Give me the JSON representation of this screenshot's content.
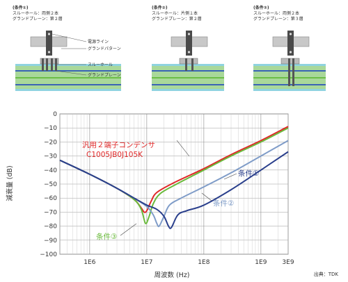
{
  "conditions": [
    {
      "header": "(条件①)",
      "line1": "スルーホール：両側２本",
      "line2": "グランドプレーン：第２層"
    },
    {
      "header": "(条件②)",
      "line1": "スルーホール：片側１本",
      "line2": "グランドプレーン：第２層"
    },
    {
      "header": "(条件③)",
      "line1": "スルーホール：両側２本",
      "line2": "グランドプレーン：第３層"
    }
  ],
  "diagram_labels": {
    "power_line": "電源ライン",
    "ground_pattern": "グランドパターン",
    "through_hole": "スルーホール",
    "ground_plane": "グランドプレーン"
  },
  "colors": {
    "cond1": "#2a3f8c",
    "cond2": "#7f9cc8",
    "cond3": "#6aba3c",
    "general": "#e02828",
    "pcb_green": "#a9d89a",
    "pcb_cyan": "#8fd3e0",
    "plane_blue": "#3a64b6",
    "plane_green": "#6bbf46"
  },
  "chart_data": {
    "type": "line",
    "xlabel": "周波数 (Hz)",
    "ylabel": "減衰量 (dB)",
    "xscale": "log",
    "xlim": [
      300000,
      3000000000
    ],
    "ylim": [
      -100,
      0
    ],
    "xticks": [
      1000000,
      10000000,
      100000000,
      1000000000,
      3000000000
    ],
    "xtick_labels": [
      "1E6",
      "1E7",
      "1E8",
      "1E9",
      "3E9"
    ],
    "yticks": [
      0,
      -10,
      -20,
      -30,
      -40,
      -50,
      -60,
      -70,
      -80,
      -90,
      -100
    ],
    "ytick_labels": [
      "0",
      "−10",
      "−20",
      "−30",
      "−40",
      "−50",
      "−60",
      "−70",
      "−80",
      "−90",
      "−100"
    ],
    "grid": true,
    "series": [
      {
        "name": "汎用２端子コンデンサ C1005JB0J105K",
        "color": "#e02828",
        "x": [
          300000,
          1000000,
          3000000,
          6000000,
          8000000,
          9000000,
          10000000,
          12000000,
          15000000,
          30000000,
          100000000,
          300000000,
          1000000000,
          3000000000
        ],
        "y": [
          -33,
          -43,
          -53,
          -61,
          -67,
          -70,
          -69,
          -62,
          -56,
          -49,
          -39,
          -29,
          -19,
          -9
        ]
      },
      {
        "name": "条件③",
        "color": "#6aba3c",
        "x": [
          300000,
          1000000,
          3000000,
          6000000,
          8000000,
          9500000,
          11000000,
          13000000,
          17000000,
          30000000,
          100000000,
          300000000,
          1000000000,
          3000000000
        ],
        "y": [
          -33,
          -43,
          -53,
          -61,
          -68,
          -78,
          -73,
          -64,
          -57,
          -51,
          -40,
          -30,
          -20,
          -10
        ]
      },
      {
        "name": "条件②",
        "color": "#7f9cc8",
        "x": [
          300000,
          1000000,
          3000000,
          6000000,
          10000000,
          13000000,
          15000000,
          16500000,
          20000000,
          25000000,
          40000000,
          100000000,
          300000000,
          1000000000,
          3000000000
        ],
        "y": [
          -33,
          -43,
          -53,
          -60,
          -66,
          -72,
          -78,
          -80,
          -73,
          -65,
          -60,
          -52,
          -42,
          -30,
          -19
        ]
      },
      {
        "name": "条件①",
        "color": "#2a3f8c",
        "x": [
          300000,
          1000000,
          3000000,
          6000000,
          10000000,
          15000000,
          20000000,
          24000000,
          27000000,
          35000000,
          50000000,
          100000000,
          300000000,
          1000000000,
          3000000000
        ],
        "y": [
          -33,
          -43,
          -53,
          -60,
          -65,
          -68,
          -73,
          -80,
          -81,
          -72,
          -69,
          -65,
          -54,
          -40,
          -27
        ]
      }
    ],
    "annotations": {
      "general_line1": "汎用２端子コンデンサ",
      "general_line2": "C1005JB0J105K",
      "cond1": "条件①",
      "cond2": "条件②",
      "cond3": "条件③"
    }
  },
  "source": "出典：TDK"
}
